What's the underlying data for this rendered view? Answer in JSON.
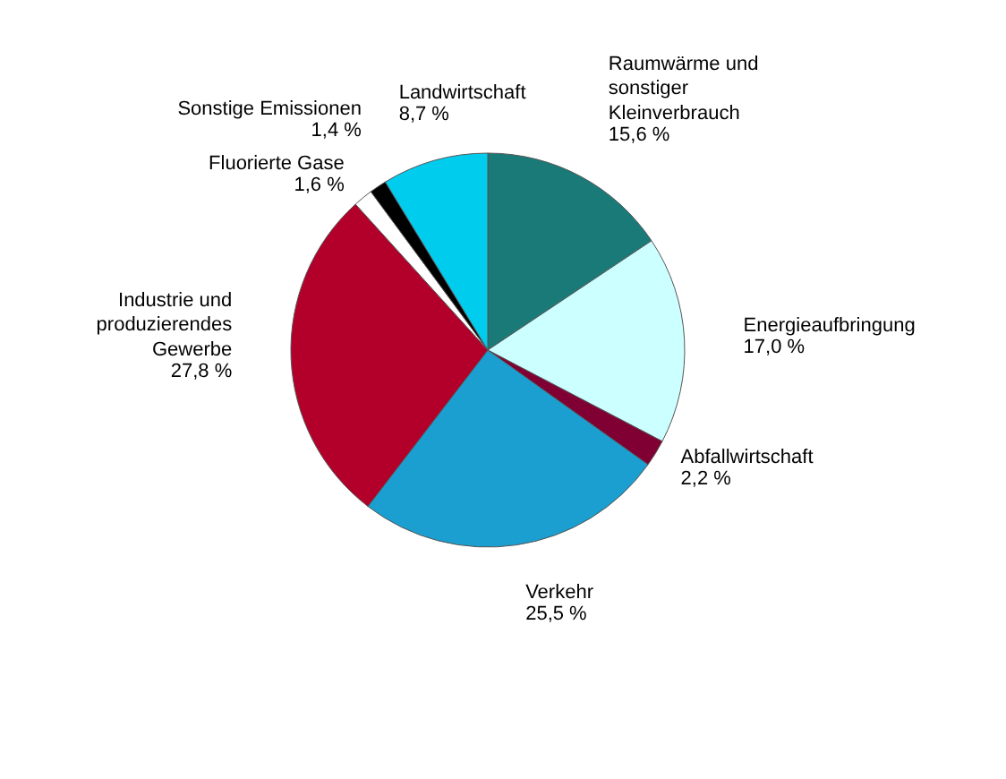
{
  "chart_data": {
    "type": "pie",
    "categories": [
      "Raumwärme und\nsonstiger\nKleinverbrauch",
      "Energieaufbringung",
      "Abfallwirtschaft",
      "Verkehr",
      "Industrie und\nproduzierendes\nGewerbe",
      "Fluorierte Gase",
      "Sonstige Emissionen",
      "Landwirtschaft"
    ],
    "values": [
      15.6,
      17.0,
      2.2,
      25.5,
      27.8,
      1.6,
      1.4,
      8.7
    ],
    "value_labels": [
      "15,6 %",
      "17,0 %",
      "2,2 %",
      "25,5 %",
      "27,8 %",
      "1,6 %",
      "1,4 %",
      "8,7 %"
    ],
    "colors": [
      "#1a7a78",
      "#ccffff",
      "#800033",
      "#1a9fd0",
      "#b3002a",
      "#ffffff",
      "#000000",
      "#00ccee"
    ],
    "legend": false
  }
}
